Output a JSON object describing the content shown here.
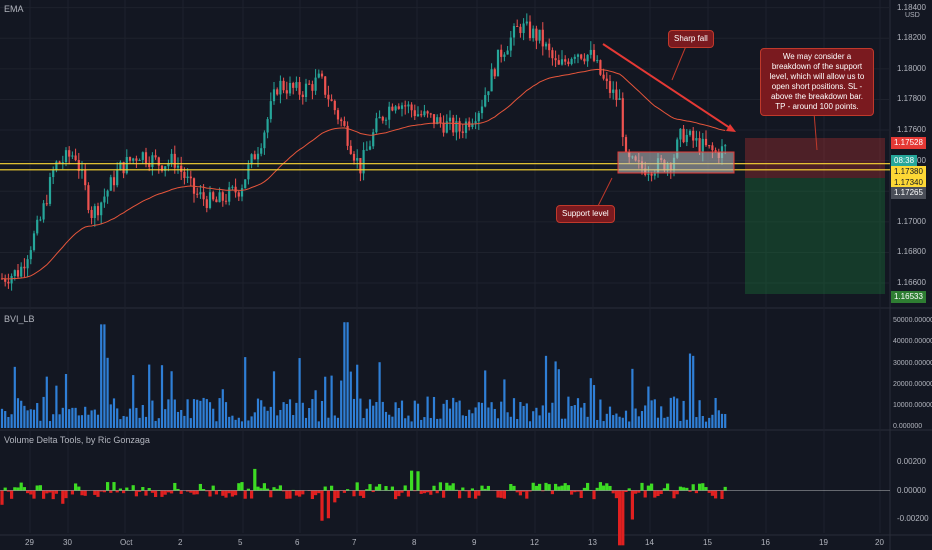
{
  "main_pane": {
    "indicator_label": "EMA",
    "currency": "USD",
    "price_ticks": [
      "1.18400",
      "1.18200",
      "1.18000",
      "1.17800",
      "1.17600",
      "1.17400",
      "1.17200",
      "1.17000",
      "1.16800",
      "1.16600"
    ],
    "badges": [
      {
        "text": "1.17528",
        "color": "#e53935"
      },
      {
        "text": "08:38",
        "color": "#26a69a"
      },
      {
        "text": "1.17380",
        "color": "#fdd835"
      },
      {
        "text": "1.17340",
        "color": "#fdd835"
      },
      {
        "text": "1.17265",
        "color": "#4a4e58"
      },
      {
        "text": "1.16533",
        "color": "#2e7d32"
      }
    ],
    "annotations": {
      "sharp_fall": "Sharp fall",
      "support_level": "Support level",
      "trade_note": "We may consider a breakdown of the support level, which will allow us to open short positions. SL - above the breakdown bar. TP - around 100 points."
    }
  },
  "volume_pane": {
    "label": "BVI_LB",
    "ticks": [
      "50000.000000",
      "40000.000000",
      "30000.000000",
      "20000.000000",
      "10000.000000",
      "0.000000"
    ]
  },
  "delta_pane": {
    "label": "Volume Delta Tools, by Ric Gonzaga",
    "ticks": [
      "0.00200",
      "0.00000",
      "-0.00200"
    ]
  },
  "x_axis": {
    "labels": [
      "29",
      "30",
      "Oct",
      "2",
      "5",
      "6",
      "7",
      "8",
      "9",
      "12",
      "13",
      "14",
      "15",
      "16",
      "19",
      "20"
    ]
  },
  "colors": {
    "up": "#26a69a",
    "down": "#ef5350",
    "ema": "#e5553b",
    "support": "#fdd835",
    "volume": "#2f7fd6",
    "delta_pos": "#3ddc24",
    "delta_neg": "#e02020"
  }
}
